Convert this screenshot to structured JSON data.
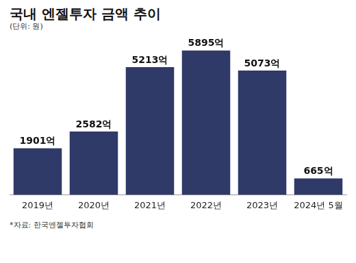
{
  "chart_data": {
    "type": "bar",
    "title": "국내 엔젤투자 금액 추이",
    "subtitle": "(단위: 원)",
    "categories": [
      "2019년",
      "2020년",
      "2021년",
      "2022년",
      "2023년",
      "2024년 5월"
    ],
    "values": [
      1901,
      2582,
      5213,
      5895,
      5073,
      665
    ],
    "value_labels": [
      "1901억",
      "2582억",
      "5213억",
      "5895억",
      "5073억",
      "665억"
    ],
    "color": "#2f3a68",
    "ylim": [
      0,
      6500
    ],
    "grid": false,
    "data_labels": true,
    "tick_labels": "x",
    "source": "*자료: 한국엔젤투자협회"
  }
}
